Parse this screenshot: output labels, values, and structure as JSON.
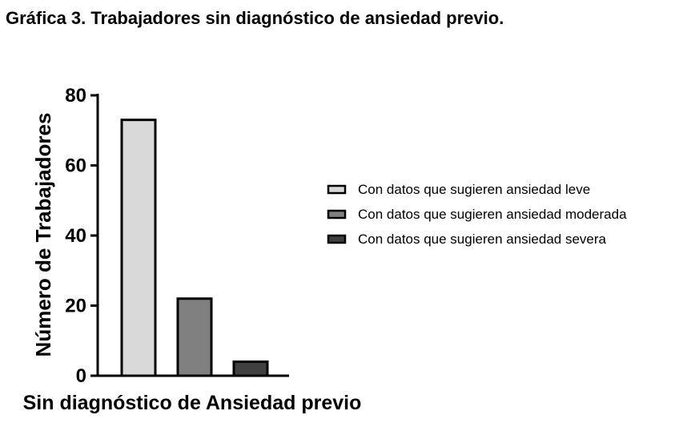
{
  "title": "Gráfica 3. Trabajadores sin diagnóstico de ansiedad previo.",
  "chart_data": {
    "type": "bar",
    "title": "Gráfica 3. Trabajadores sin diagnóstico de ansiedad previo.",
    "xlabel": "Sin diagnóstico de Ansiedad previo",
    "ylabel": "Número de Trabajadores",
    "ylim": [
      0,
      80
    ],
    "yticks": [
      "0",
      "20",
      "40",
      "60",
      "80"
    ],
    "grid": false,
    "legend_position": "right",
    "series": [
      {
        "name": "Con datos que sugieren ansiedad leve",
        "values": [
          73
        ],
        "color": "#d9d9d9"
      },
      {
        "name": "Con datos que sugieren ansiedad moderada",
        "values": [
          22
        ],
        "color": "#808080"
      },
      {
        "name": "Con datos que sugieren ansiedad severa",
        "values": [
          4
        ],
        "color": "#404040"
      }
    ]
  }
}
